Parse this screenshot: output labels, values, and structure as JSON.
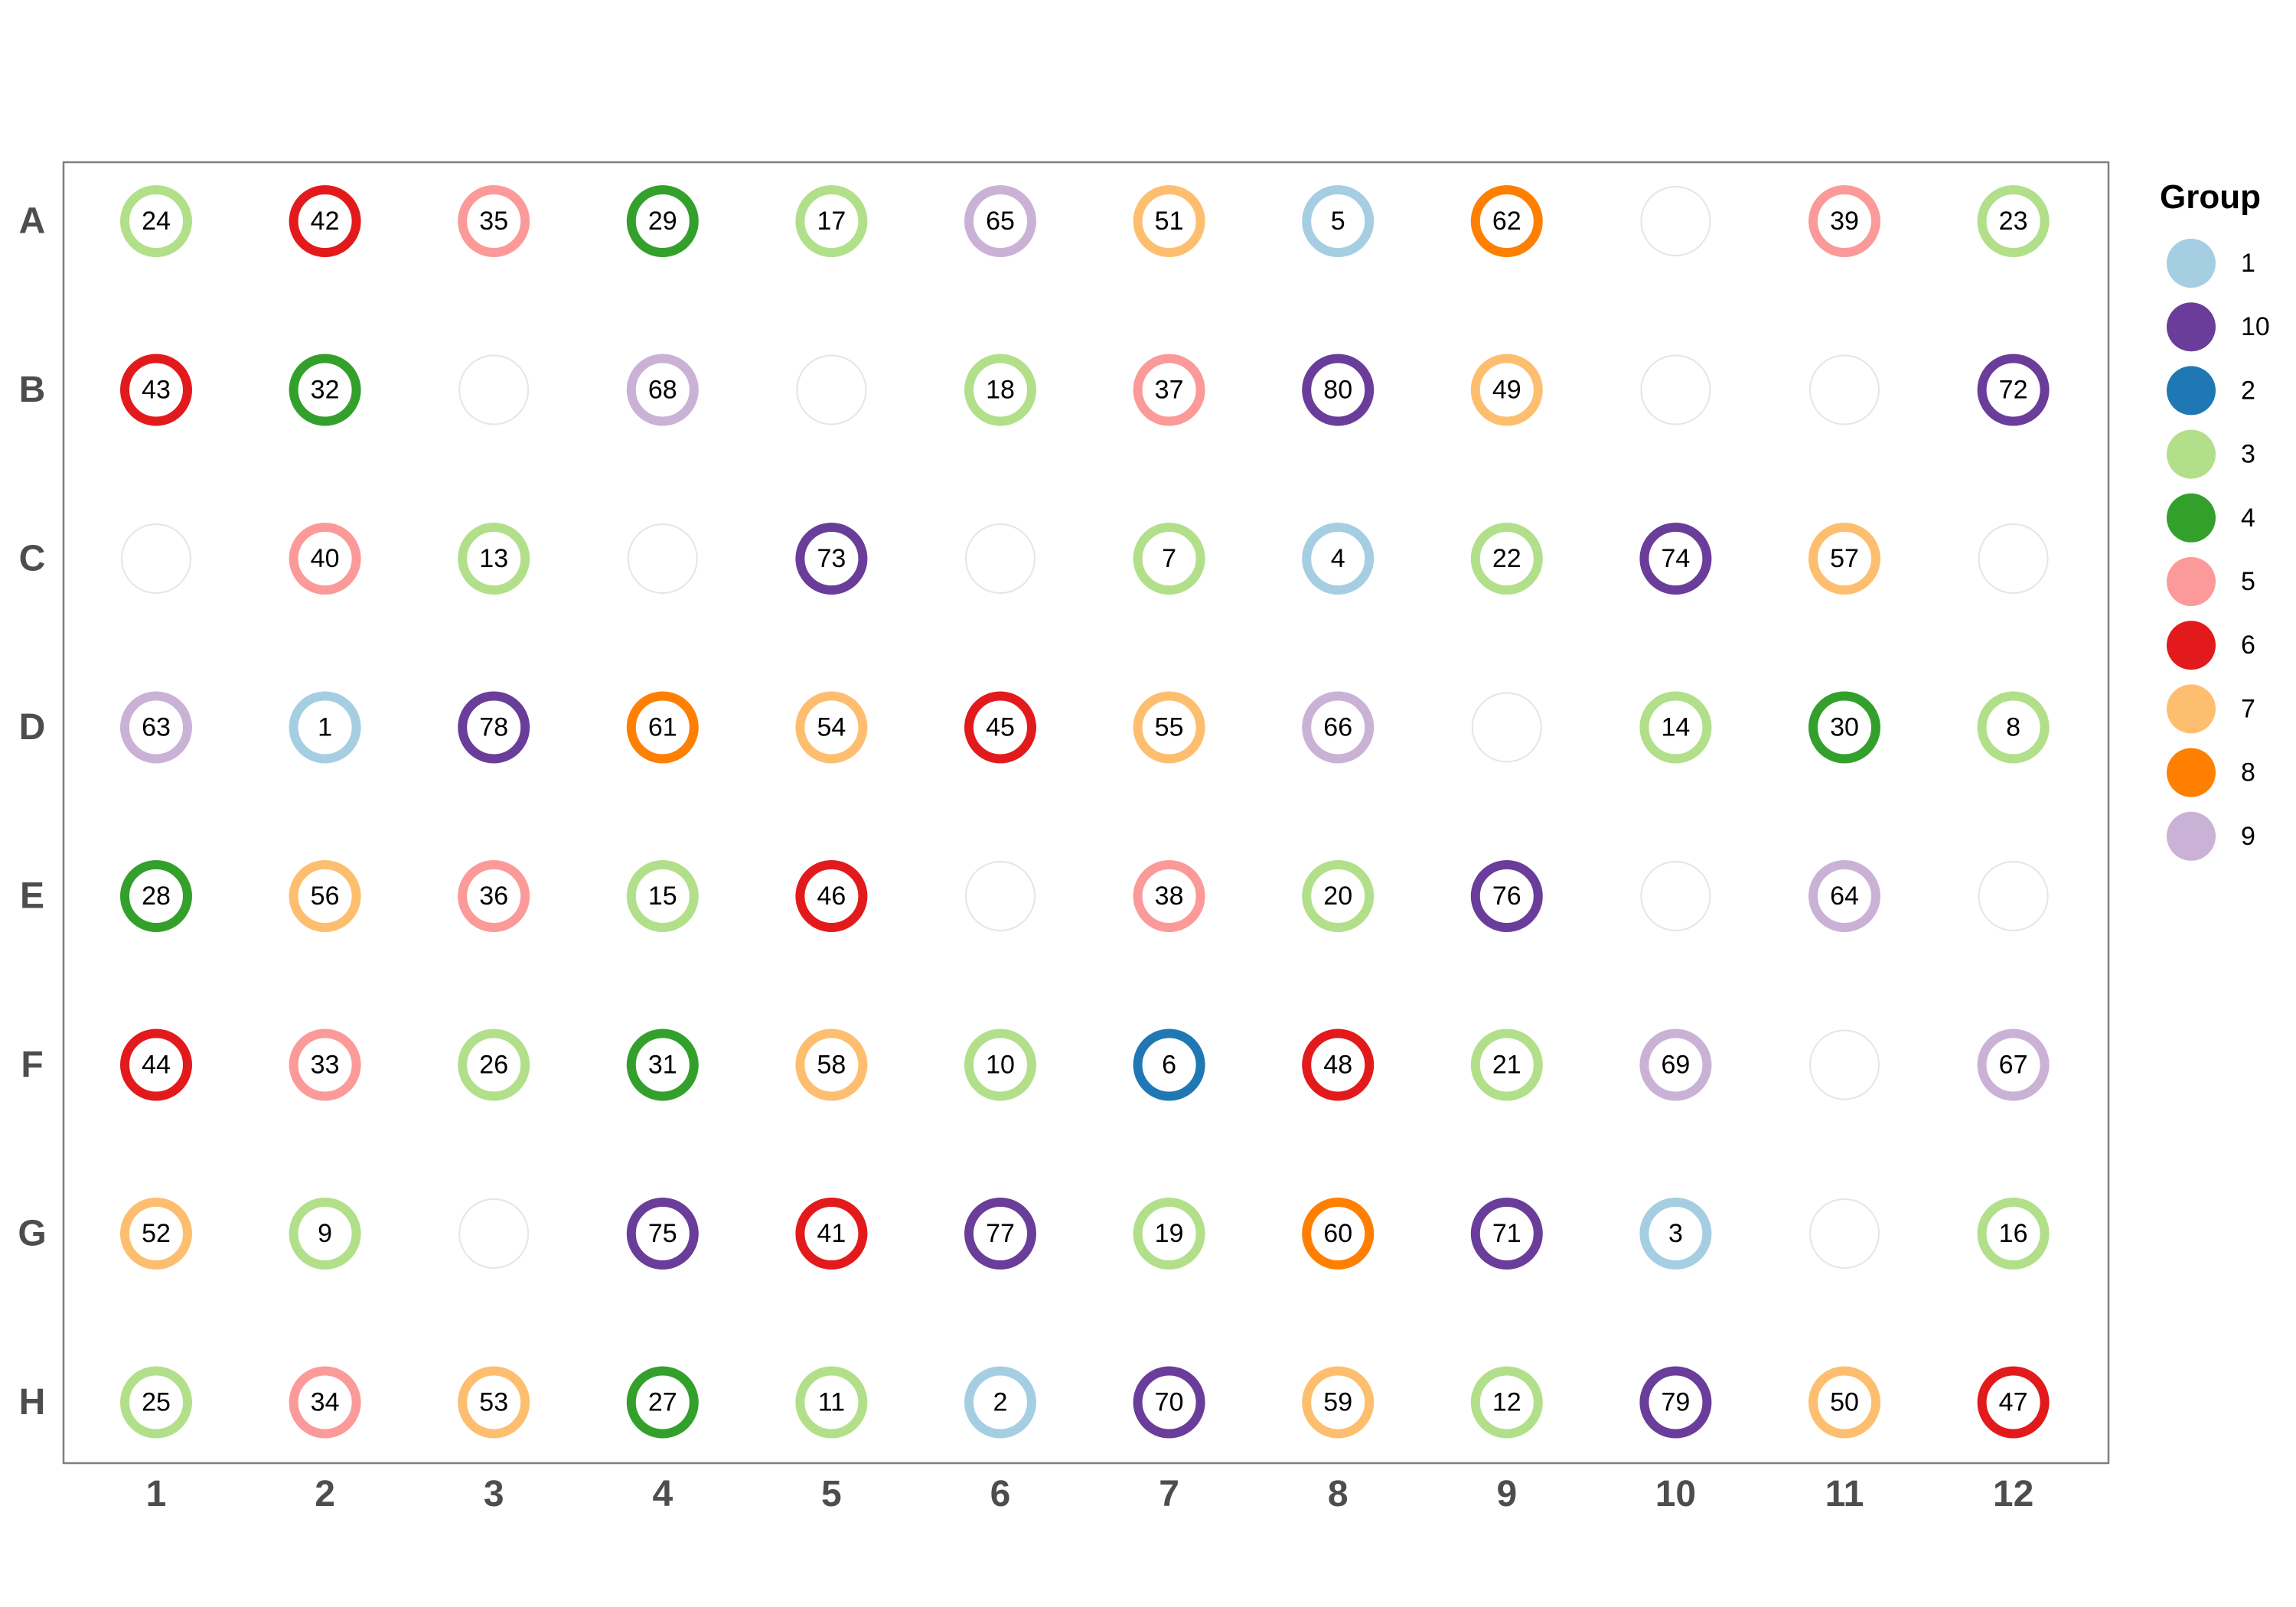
{
  "chart_data": {
    "type": "scatter",
    "title": "",
    "xlabel": "",
    "ylabel": "",
    "columns": [
      "1",
      "2",
      "3",
      "4",
      "5",
      "6",
      "7",
      "8",
      "9",
      "10",
      "11",
      "12"
    ],
    "rows": [
      "A",
      "B",
      "C",
      "D",
      "E",
      "F",
      "G",
      "H"
    ],
    "legend": {
      "title": "Group",
      "position": "right",
      "groups": [
        "1",
        "10",
        "2",
        "3",
        "4",
        "5",
        "6",
        "7",
        "8",
        "9"
      ],
      "colors": {
        "1": "#a6cee3",
        "10": "#6a3d9a",
        "2": "#1f78b4",
        "3": "#b2df8a",
        "4": "#33a02c",
        "5": "#fb9a99",
        "6": "#e31a1c",
        "7": "#fdbf6f",
        "8": "#ff7f00",
        "9": "#cab2d6"
      }
    },
    "empty_well_color": "#e5e5e5",
    "wells": [
      {
        "row": "A",
        "col": 1,
        "sample": "24",
        "group": "3"
      },
      {
        "row": "A",
        "col": 2,
        "sample": "42",
        "group": "6"
      },
      {
        "row": "A",
        "col": 3,
        "sample": "35",
        "group": "5"
      },
      {
        "row": "A",
        "col": 4,
        "sample": "29",
        "group": "4"
      },
      {
        "row": "A",
        "col": 5,
        "sample": "17",
        "group": "3"
      },
      {
        "row": "A",
        "col": 6,
        "sample": "65",
        "group": "9"
      },
      {
        "row": "A",
        "col": 7,
        "sample": "51",
        "group": "7"
      },
      {
        "row": "A",
        "col": 8,
        "sample": "5",
        "group": "1"
      },
      {
        "row": "A",
        "col": 9,
        "sample": "62",
        "group": "8"
      },
      {
        "row": "A",
        "col": 10,
        "sample": "",
        "group": null
      },
      {
        "row": "A",
        "col": 11,
        "sample": "39",
        "group": "5"
      },
      {
        "row": "A",
        "col": 12,
        "sample": "23",
        "group": "3"
      },
      {
        "row": "B",
        "col": 1,
        "sample": "43",
        "group": "6"
      },
      {
        "row": "B",
        "col": 2,
        "sample": "32",
        "group": "4"
      },
      {
        "row": "B",
        "col": 3,
        "sample": "",
        "group": null
      },
      {
        "row": "B",
        "col": 4,
        "sample": "68",
        "group": "9"
      },
      {
        "row": "B",
        "col": 5,
        "sample": "",
        "group": null
      },
      {
        "row": "B",
        "col": 6,
        "sample": "18",
        "group": "3"
      },
      {
        "row": "B",
        "col": 7,
        "sample": "37",
        "group": "5"
      },
      {
        "row": "B",
        "col": 8,
        "sample": "80",
        "group": "10"
      },
      {
        "row": "B",
        "col": 9,
        "sample": "49",
        "group": "7"
      },
      {
        "row": "B",
        "col": 10,
        "sample": "",
        "group": null
      },
      {
        "row": "B",
        "col": 11,
        "sample": "",
        "group": null
      },
      {
        "row": "B",
        "col": 12,
        "sample": "72",
        "group": "10"
      },
      {
        "row": "C",
        "col": 1,
        "sample": "",
        "group": null
      },
      {
        "row": "C",
        "col": 2,
        "sample": "40",
        "group": "5"
      },
      {
        "row": "C",
        "col": 3,
        "sample": "13",
        "group": "3"
      },
      {
        "row": "C",
        "col": 4,
        "sample": "",
        "group": null
      },
      {
        "row": "C",
        "col": 5,
        "sample": "73",
        "group": "10"
      },
      {
        "row": "C",
        "col": 6,
        "sample": "",
        "group": null
      },
      {
        "row": "C",
        "col": 7,
        "sample": "7",
        "group": "3"
      },
      {
        "row": "C",
        "col": 8,
        "sample": "4",
        "group": "1"
      },
      {
        "row": "C",
        "col": 9,
        "sample": "22",
        "group": "3"
      },
      {
        "row": "C",
        "col": 10,
        "sample": "74",
        "group": "10"
      },
      {
        "row": "C",
        "col": 11,
        "sample": "57",
        "group": "7"
      },
      {
        "row": "C",
        "col": 12,
        "sample": "",
        "group": null
      },
      {
        "row": "D",
        "col": 1,
        "sample": "63",
        "group": "9"
      },
      {
        "row": "D",
        "col": 2,
        "sample": "1",
        "group": "1"
      },
      {
        "row": "D",
        "col": 3,
        "sample": "78",
        "group": "10"
      },
      {
        "row": "D",
        "col": 4,
        "sample": "61",
        "group": "8"
      },
      {
        "row": "D",
        "col": 5,
        "sample": "54",
        "group": "7"
      },
      {
        "row": "D",
        "col": 6,
        "sample": "45",
        "group": "6"
      },
      {
        "row": "D",
        "col": 7,
        "sample": "55",
        "group": "7"
      },
      {
        "row": "D",
        "col": 8,
        "sample": "66",
        "group": "9"
      },
      {
        "row": "D",
        "col": 9,
        "sample": "",
        "group": null
      },
      {
        "row": "D",
        "col": 10,
        "sample": "14",
        "group": "3"
      },
      {
        "row": "D",
        "col": 11,
        "sample": "30",
        "group": "4"
      },
      {
        "row": "D",
        "col": 12,
        "sample": "8",
        "group": "3"
      },
      {
        "row": "E",
        "col": 1,
        "sample": "28",
        "group": "4"
      },
      {
        "row": "E",
        "col": 2,
        "sample": "56",
        "group": "7"
      },
      {
        "row": "E",
        "col": 3,
        "sample": "36",
        "group": "5"
      },
      {
        "row": "E",
        "col": 4,
        "sample": "15",
        "group": "3"
      },
      {
        "row": "E",
        "col": 5,
        "sample": "46",
        "group": "6"
      },
      {
        "row": "E",
        "col": 6,
        "sample": "",
        "group": null
      },
      {
        "row": "E",
        "col": 7,
        "sample": "38",
        "group": "5"
      },
      {
        "row": "E",
        "col": 8,
        "sample": "20",
        "group": "3"
      },
      {
        "row": "E",
        "col": 9,
        "sample": "76",
        "group": "10"
      },
      {
        "row": "E",
        "col": 10,
        "sample": "",
        "group": null
      },
      {
        "row": "E",
        "col": 11,
        "sample": "64",
        "group": "9"
      },
      {
        "row": "E",
        "col": 12,
        "sample": "",
        "group": null
      },
      {
        "row": "F",
        "col": 1,
        "sample": "44",
        "group": "6"
      },
      {
        "row": "F",
        "col": 2,
        "sample": "33",
        "group": "5"
      },
      {
        "row": "F",
        "col": 3,
        "sample": "26",
        "group": "3"
      },
      {
        "row": "F",
        "col": 4,
        "sample": "31",
        "group": "4"
      },
      {
        "row": "F",
        "col": 5,
        "sample": "58",
        "group": "7"
      },
      {
        "row": "F",
        "col": 6,
        "sample": "10",
        "group": "3"
      },
      {
        "row": "F",
        "col": 7,
        "sample": "6",
        "group": "2"
      },
      {
        "row": "F",
        "col": 8,
        "sample": "48",
        "group": "6"
      },
      {
        "row": "F",
        "col": 9,
        "sample": "21",
        "group": "3"
      },
      {
        "row": "F",
        "col": 10,
        "sample": "69",
        "group": "9"
      },
      {
        "row": "F",
        "col": 11,
        "sample": "",
        "group": null
      },
      {
        "row": "F",
        "col": 12,
        "sample": "67",
        "group": "9"
      },
      {
        "row": "G",
        "col": 1,
        "sample": "52",
        "group": "7"
      },
      {
        "row": "G",
        "col": 2,
        "sample": "9",
        "group": "3"
      },
      {
        "row": "G",
        "col": 3,
        "sample": "",
        "group": null
      },
      {
        "row": "G",
        "col": 4,
        "sample": "75",
        "group": "10"
      },
      {
        "row": "G",
        "col": 5,
        "sample": "41",
        "group": "6"
      },
      {
        "row": "G",
        "col": 6,
        "sample": "77",
        "group": "10"
      },
      {
        "row": "G",
        "col": 7,
        "sample": "19",
        "group": "3"
      },
      {
        "row": "G",
        "col": 8,
        "sample": "60",
        "group": "8"
      },
      {
        "row": "G",
        "col": 9,
        "sample": "71",
        "group": "10"
      },
      {
        "row": "G",
        "col": 10,
        "sample": "3",
        "group": "1"
      },
      {
        "row": "G",
        "col": 11,
        "sample": "",
        "group": null
      },
      {
        "row": "G",
        "col": 12,
        "sample": "16",
        "group": "3"
      },
      {
        "row": "H",
        "col": 1,
        "sample": "25",
        "group": "3"
      },
      {
        "row": "H",
        "col": 2,
        "sample": "34",
        "group": "5"
      },
      {
        "row": "H",
        "col": 3,
        "sample": "53",
        "group": "7"
      },
      {
        "row": "H",
        "col": 4,
        "sample": "27",
        "group": "4"
      },
      {
        "row": "H",
        "col": 5,
        "sample": "11",
        "group": "3"
      },
      {
        "row": "H",
        "col": 6,
        "sample": "2",
        "group": "1"
      },
      {
        "row": "H",
        "col": 7,
        "sample": "70",
        "group": "10"
      },
      {
        "row": "H",
        "col": 8,
        "sample": "59",
        "group": "7"
      },
      {
        "row": "H",
        "col": 9,
        "sample": "12",
        "group": "3"
      },
      {
        "row": "H",
        "col": 10,
        "sample": "79",
        "group": "10"
      },
      {
        "row": "H",
        "col": 11,
        "sample": "50",
        "group": "7"
      },
      {
        "row": "H",
        "col": 12,
        "sample": "47",
        "group": "6"
      }
    ]
  }
}
